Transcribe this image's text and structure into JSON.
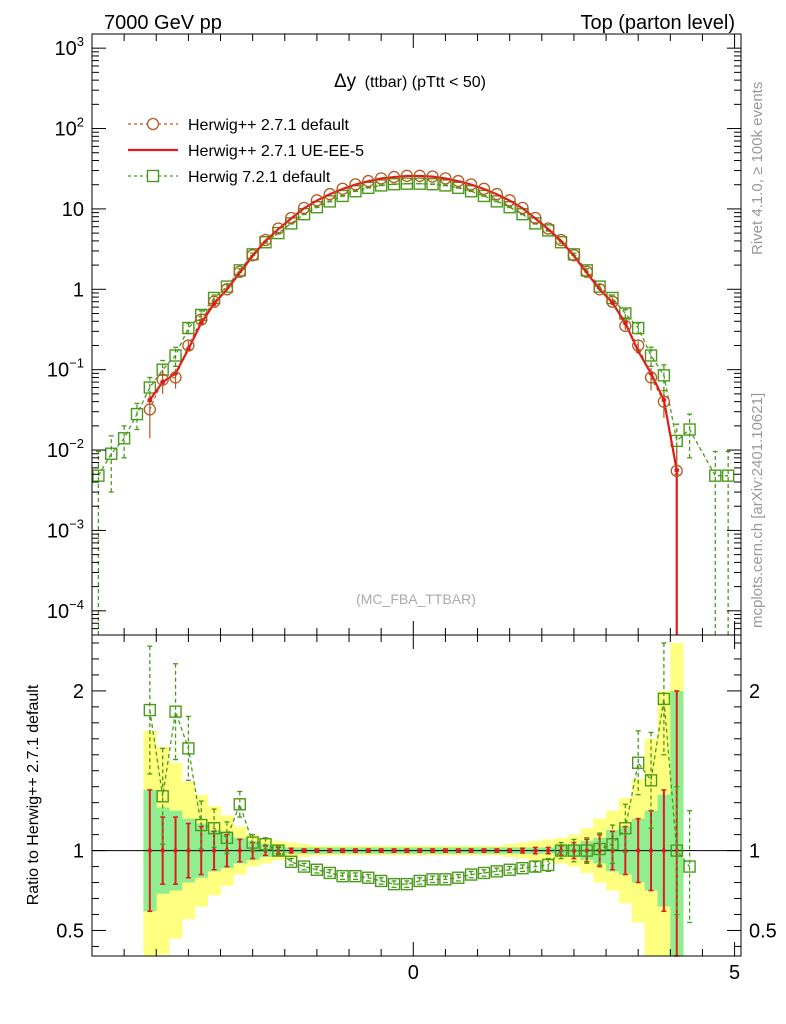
{
  "header": {
    "left": "7000 GeV pp",
    "right": "Top (parton level)"
  },
  "side_labels": {
    "rivet": "Rivet 4.1.0, ≥ 100k events",
    "mcplots": "mcplots.cern.ch [arXiv:2401.10621]"
  },
  "colors": {
    "herwigpp_default": "#b35a1f",
    "herwigpp_ueee5": "#e31a1c",
    "herwig721": "#4a9a1a",
    "band_stat": "#90ee90",
    "band_total": "#ffff80"
  },
  "chart_data": [
    {
      "type": "line",
      "title_symbol": "Δy",
      "title_text": "(ttbar) (pTtt < 50)",
      "watermark": "(MC_FBA_TTBAR)",
      "yscale": "log",
      "xlim": [
        -5.0,
        5.1
      ],
      "ylim": [
        5e-05,
        1500
      ],
      "ytick_labels": [
        {
          "value": 1000,
          "mant": "10",
          "exp": "3"
        },
        {
          "value": 100,
          "mant": "10",
          "exp": "2"
        },
        {
          "value": 10,
          "mant": "10",
          "exp": ""
        },
        {
          "value": 1,
          "mant": "1",
          "exp": ""
        },
        {
          "value": 0.1,
          "mant": "10",
          "exp": "−1"
        },
        {
          "value": 0.01,
          "mant": "10",
          "exp": "−2"
        },
        {
          "value": 0.001,
          "mant": "10",
          "exp": "−3"
        },
        {
          "value": 0.0001,
          "mant": "10",
          "exp": "−4"
        }
      ],
      "legend": [
        {
          "label": "Herwig++ 2.7.1 default",
          "style": "circle-dashed"
        },
        {
          "label": "Herwig++ 2.7.1 UE-EE-5",
          "style": "solid"
        },
        {
          "label": "Herwig 7.2.1 default",
          "style": "square-dashed"
        }
      ],
      "x": [
        -4.9,
        -4.7,
        -4.5,
        -4.3,
        -4.1,
        -3.9,
        -3.7,
        -3.5,
        -3.3,
        -3.1,
        -2.9,
        -2.7,
        -2.5,
        -2.3,
        -2.1,
        -1.9,
        -1.7,
        -1.5,
        -1.3,
        -1.1,
        -0.9,
        -0.7,
        -0.5,
        -0.3,
        -0.1,
        0.1,
        0.3,
        0.5,
        0.7,
        0.9,
        1.1,
        1.3,
        1.5,
        1.7,
        1.9,
        2.1,
        2.3,
        2.5,
        2.7,
        2.9,
        3.1,
        3.3,
        3.5,
        3.7,
        3.9,
        4.1,
        4.3,
        4.5,
        4.7,
        4.9
      ],
      "series": [
        {
          "name": "Herwig++ 2.7.1 default",
          "values": [
            null,
            null,
            null,
            null,
            0.032,
            0.075,
            0.08,
            0.2,
            0.42,
            0.7,
            1.0,
            1.65,
            2.65,
            4.1,
            5.7,
            7.7,
            10.3,
            12.8,
            15.3,
            17.8,
            20.2,
            22.2,
            24.0,
            25.0,
            25.8,
            25.8,
            25.3,
            24.0,
            22.2,
            20.2,
            17.8,
            15.3,
            12.8,
            10.3,
            7.7,
            5.7,
            4.1,
            2.65,
            1.65,
            1.0,
            0.7,
            0.35,
            0.2,
            0.08,
            0.04,
            0.0055,
            null,
            null,
            null,
            null
          ],
          "errors": [
            null,
            null,
            null,
            null,
            0.018,
            0.025,
            0.022,
            0.03,
            0.04,
            0.05,
            0.05,
            0.06,
            0.07,
            0.08,
            0.08,
            0.1,
            0.1,
            0.1,
            0.1,
            0.1,
            0.1,
            0.1,
            0.1,
            0.1,
            0.1,
            0.1,
            0.1,
            0.1,
            0.1,
            0.1,
            0.1,
            0.1,
            0.1,
            0.1,
            0.1,
            0.08,
            0.08,
            0.07,
            0.06,
            0.05,
            0.05,
            0.04,
            0.03,
            0.025,
            0.015,
            0.0054,
            null,
            null,
            null,
            null
          ]
        },
        {
          "name": "Herwig++ 2.7.1 UE-EE-5",
          "values": [
            null,
            null,
            null,
            null,
            0.042,
            0.07,
            0.09,
            0.18,
            0.38,
            0.66,
            1.0,
            1.6,
            2.6,
            4.0,
            5.6,
            7.6,
            10.2,
            12.7,
            15.2,
            17.7,
            20.1,
            22.1,
            23.9,
            24.9,
            25.7,
            25.7,
            25.2,
            23.9,
            22.1,
            20.1,
            17.7,
            15.2,
            12.7,
            10.2,
            7.6,
            5.6,
            4.0,
            2.6,
            1.6,
            1.0,
            0.68,
            0.38,
            0.17,
            0.09,
            0.042,
            0.0056,
            null,
            null,
            null,
            null
          ]
        },
        {
          "name": "Herwig 7.2.1 default",
          "values": [
            0.0048,
            0.009,
            0.014,
            0.028,
            0.06,
            0.1,
            0.15,
            0.33,
            0.48,
            0.78,
            1.08,
            1.72,
            2.72,
            3.85,
            5.0,
            6.6,
            8.6,
            10.5,
            12.4,
            14.5,
            16.6,
            18.3,
            19.6,
            20.3,
            20.6,
            20.6,
            20.3,
            19.6,
            18.3,
            16.6,
            14.5,
            12.4,
            10.5,
            8.6,
            6.6,
            5.4,
            3.85,
            2.72,
            1.72,
            1.08,
            0.78,
            0.5,
            0.33,
            0.15,
            0.085,
            0.013,
            0.018,
            null,
            0.0048,
            0.0048
          ],
          "errors": [
            0.0048,
            0.006,
            0.006,
            0.01,
            0.02,
            0.03,
            0.04,
            0.05,
            0.06,
            0.07,
            0.07,
            0.08,
            0.09,
            0.1,
            0.1,
            0.1,
            0.1,
            0.1,
            0.1,
            0.1,
            0.1,
            0.1,
            0.1,
            0.1,
            0.1,
            0.1,
            0.1,
            0.1,
            0.1,
            0.1,
            0.1,
            0.1,
            0.1,
            0.1,
            0.1,
            0.1,
            0.1,
            0.09,
            0.08,
            0.07,
            0.07,
            0.06,
            0.05,
            0.04,
            0.03,
            0.008,
            0.01,
            null,
            0.0048,
            0.0048
          ]
        }
      ]
    },
    {
      "type": "line",
      "ylabel": "Ratio to Herwig++ 2.7.1 default",
      "xlim": [
        -5.0,
        5.1
      ],
      "ylim": [
        0.34,
        2.35
      ],
      "xtick_labels": [
        {
          "value": 0,
          "label": "0"
        },
        {
          "value": 5,
          "label": "5"
        }
      ],
      "ytick_labels": [
        {
          "value": 0.5,
          "label": "0.5"
        },
        {
          "value": 1,
          "label": "1"
        },
        {
          "value": 2,
          "label": "2"
        }
      ],
      "x": [
        -4.9,
        -4.7,
        -4.5,
        -4.3,
        -4.1,
        -3.9,
        -3.7,
        -3.5,
        -3.3,
        -3.1,
        -2.9,
        -2.7,
        -2.5,
        -2.3,
        -2.1,
        -1.9,
        -1.7,
        -1.5,
        -1.3,
        -1.1,
        -0.9,
        -0.7,
        -0.5,
        -0.3,
        -0.1,
        0.1,
        0.3,
        0.5,
        0.7,
        0.9,
        1.1,
        1.3,
        1.5,
        1.7,
        1.9,
        2.1,
        2.3,
        2.5,
        2.7,
        2.9,
        3.1,
        3.3,
        3.5,
        3.7,
        3.9,
        4.1,
        4.3,
        4.5,
        4.7,
        4.9
      ],
      "band_stat_halfwidth": [
        null,
        null,
        null,
        null,
        0.38,
        0.27,
        0.25,
        0.2,
        0.17,
        0.13,
        0.11,
        0.08,
        0.06,
        0.04,
        0.03,
        0.02,
        0.02,
        0.02,
        0.02,
        0.02,
        0.02,
        0.02,
        0.02,
        0.02,
        0.02,
        0.02,
        0.02,
        0.02,
        0.02,
        0.02,
        0.02,
        0.02,
        0.02,
        0.02,
        0.02,
        0.02,
        0.03,
        0.04,
        0.06,
        0.08,
        0.13,
        0.15,
        0.2,
        0.25,
        0.35,
        1.0,
        null,
        null,
        null,
        null
      ],
      "band_total_halfwidth": [
        null,
        null,
        null,
        null,
        0.75,
        0.65,
        0.55,
        0.43,
        0.35,
        0.28,
        0.22,
        0.15,
        0.1,
        0.08,
        0.06,
        0.05,
        0.04,
        0.03,
        0.03,
        0.03,
        0.03,
        0.03,
        0.03,
        0.03,
        0.03,
        0.03,
        0.03,
        0.03,
        0.03,
        0.03,
        0.03,
        0.03,
        0.04,
        0.05,
        0.06,
        0.07,
        0.08,
        0.1,
        0.14,
        0.2,
        0.25,
        0.33,
        0.45,
        0.7,
        1.0,
        1.3,
        null,
        null,
        null,
        null
      ],
      "series": [
        {
          "name": "Herwig++ 2.7.1 UE-EE-5",
          "values": [
            null,
            null,
            null,
            null,
            1.0,
            1.0,
            1.0,
            1.0,
            1.0,
            1.0,
            1.0,
            1.0,
            1.0,
            1.0,
            1.0,
            1.0,
            1.0,
            1.0,
            1.0,
            1.0,
            1.0,
            1.0,
            1.0,
            1.0,
            1.0,
            1.0,
            1.0,
            1.0,
            1.0,
            1.0,
            1.0,
            1.0,
            1.0,
            1.0,
            1.0,
            1.0,
            1.0,
            1.0,
            1.0,
            1.0,
            1.0,
            1.0,
            1.0,
            1.0,
            1.0,
            1.0,
            null,
            null,
            null,
            null
          ],
          "errors": [
            null,
            null,
            null,
            null,
            0.38,
            0.21,
            0.21,
            0.17,
            0.15,
            0.12,
            0.1,
            0.07,
            0.05,
            0.03,
            0.02,
            0.015,
            0.01,
            0.01,
            0.01,
            0.01,
            0.01,
            0.01,
            0.01,
            0.01,
            0.01,
            0.01,
            0.01,
            0.01,
            0.01,
            0.01,
            0.01,
            0.01,
            0.01,
            0.015,
            0.02,
            0.02,
            0.03,
            0.05,
            0.07,
            0.1,
            0.12,
            0.15,
            0.2,
            0.25,
            0.38,
            1.0,
            null,
            null,
            null,
            null
          ]
        },
        {
          "name": "Herwig 7.2.1 default",
          "values": [
            null,
            null,
            null,
            null,
            1.88,
            1.34,
            1.87,
            1.64,
            1.16,
            1.14,
            1.08,
            1.29,
            1.05,
            1.04,
            1.0,
            0.93,
            0.9,
            0.88,
            0.86,
            0.84,
            0.84,
            0.83,
            0.81,
            0.79,
            0.79,
            0.81,
            0.82,
            0.82,
            0.83,
            0.85,
            0.86,
            0.87,
            0.88,
            0.89,
            0.9,
            0.91,
            1.0,
            1.0,
            1.0,
            1.01,
            1.04,
            1.14,
            1.55,
            1.44,
            1.95,
            1.0,
            0.9,
            null,
            null,
            null
          ],
          "errors": [
            null,
            null,
            null,
            null,
            0.4,
            0.3,
            0.3,
            0.2,
            0.15,
            0.12,
            0.1,
            0.08,
            0.05,
            0.04,
            0.03,
            0.02,
            0.02,
            0.02,
            0.02,
            0.02,
            0.02,
            0.02,
            0.02,
            0.02,
            0.02,
            0.02,
            0.02,
            0.02,
            0.02,
            0.02,
            0.02,
            0.02,
            0.02,
            0.02,
            0.03,
            0.04,
            0.05,
            0.07,
            0.08,
            0.1,
            0.12,
            0.15,
            0.2,
            0.3,
            0.35,
            0.4,
            0.35,
            null,
            null,
            null
          ]
        }
      ]
    }
  ]
}
